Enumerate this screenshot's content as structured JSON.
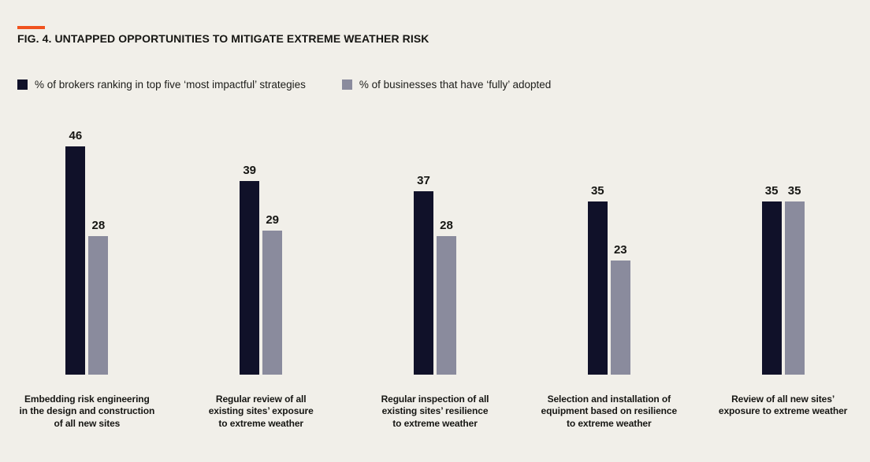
{
  "page": {
    "background": "#f1efe9"
  },
  "header": {
    "title": "FIG. 4. UNTAPPED OPPORTUNITIES TO MITIGATE EXTREME WEATHER RISK",
    "accent_color": "#f0521e"
  },
  "chart_data": {
    "type": "bar",
    "title": "FIG. 4. UNTAPPED OPPORTUNITIES TO MITIGATE EXTREME WEATHER RISK",
    "categories": [
      "Embedding risk engineering\nin the design and construction\nof all new sites",
      "Regular review of all\nexisting sites’ exposure\nto extreme weather",
      "Regular inspection of all\nexisting sites’ resilience\nto extreme weather",
      "Selection and installation of\nequipment based on resilience\nto extreme weather",
      "Review of all new sites’\nexposure to extreme weather"
    ],
    "series": [
      {
        "key": "brokers",
        "name": "% of brokers ranking in top five ‘most impactful’ strategies",
        "color": "#101129",
        "values": [
          46,
          39,
          37,
          35,
          35
        ]
      },
      {
        "key": "businesses",
        "name": "% of businesses that have ‘fully’ adopted",
        "color": "#8a8b9d",
        "values": [
          28,
          29,
          28,
          23,
          35
        ]
      }
    ],
    "value_labels": true,
    "axes": "none",
    "grid": false,
    "legend_position": "top-left",
    "ylim": [
      0,
      50
    ]
  }
}
